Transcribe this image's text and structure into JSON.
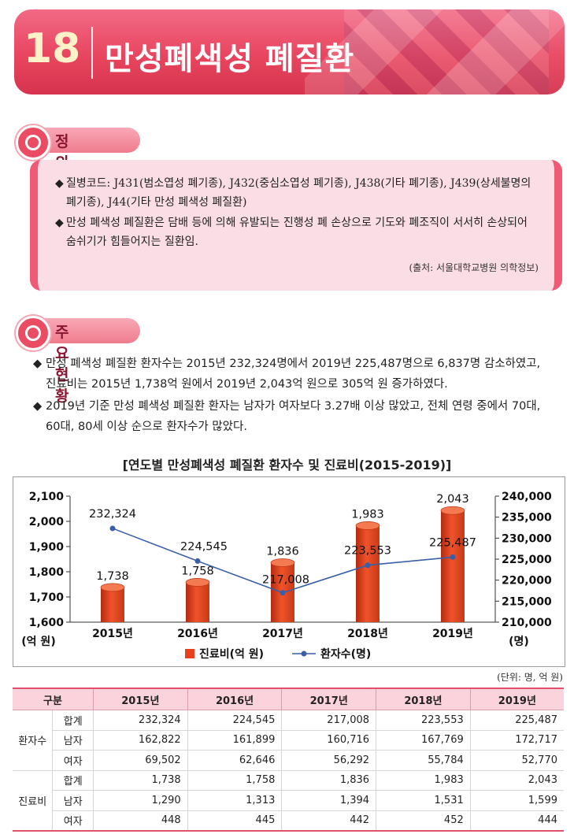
{
  "header": {
    "number": "18",
    "title": "만성폐색성 폐질환"
  },
  "definition": {
    "heading": "정  의",
    "bullets": [
      [
        "질병코드: J431(범소엽성 폐기종), J432(중심소엽성 폐기종), J438(기타 폐기종), J439(상세불명의",
        "폐기종), J44(기타 만성 폐색성 폐질환)"
      ],
      [
        "만성 폐색성 폐질환은 담배 등에 의해 유발되는 진행성 폐 손상으로 기도와 폐조직이 서서히 손상되어",
        "숨쉬기가 힘들어지는 질환임."
      ]
    ],
    "source": "(출처: 서울대학교병원 의학정보)"
  },
  "status": {
    "heading": "주요현황",
    "bullets": [
      [
        "만성 폐색성 폐질환 환자수는 2015년 232,324명에서 2019년 225,487명으로 6,837명 감소하였고,",
        "진료비는 2015년 1,738억 원에서 2019년 2,043억 원으로 305억 원 증가하였다."
      ],
      [
        "2019년 기준 만성 폐색성 폐질환 환자는 남자가 여자보다 3.27배 이상 많았고, 전체 연령 중에서 70대,",
        "60대, 80세 이상 순으로 환자수가 많았다."
      ]
    ]
  },
  "chart_data": {
    "type": "bar",
    "title": "[연도별 만성폐색성 폐질환 환자수 및 진료비(2015-2019)]",
    "categories": [
      "2015년",
      "2016년",
      "2017년",
      "2018년",
      "2019년"
    ],
    "series": [
      {
        "name": "진료비(억 원)",
        "type": "bar",
        "axis": "left",
        "values": [
          1738,
          1758,
          1836,
          1983,
          2043
        ],
        "labels": [
          "1,738",
          "1,758",
          "1,836",
          "1,983",
          "2,043"
        ],
        "color": "#e8401c"
      },
      {
        "name": "환자수(명)",
        "type": "line",
        "axis": "right",
        "values": [
          232324,
          224545,
          217008,
          223553,
          225487
        ],
        "labels": [
          "232,324",
          "224,545",
          "217,008",
          "223,553",
          "225,487"
        ],
        "color": "#3a5fa8"
      }
    ],
    "ylabel_left": "(억 원)",
    "ylabel_right": "(명)",
    "ylim_left": [
      1600,
      2100
    ],
    "ylim_right": [
      210000,
      240000
    ],
    "yticks_left": [
      "1,600",
      "1,700",
      "1,800",
      "1,900",
      "2,000",
      "2,100"
    ],
    "yticks_right": [
      "210,000",
      "215,000",
      "220,000",
      "225,000",
      "230,000",
      "235,000",
      "240,000"
    ],
    "legend": "bottom",
    "grid": false
  },
  "table": {
    "unit": "(단위: 명, 억 원)",
    "headers": [
      "구분",
      "2015년",
      "2016년",
      "2017년",
      "2018년",
      "2019년"
    ],
    "groups": [
      {
        "name": "환자수",
        "rows": [
          {
            "label": "합계",
            "values": [
              "232,324",
              "224,545",
              "217,008",
              "223,553",
              "225,487"
            ]
          },
          {
            "label": "남자",
            "values": [
              "162,822",
              "161,899",
              "160,716",
              "167,769",
              "172,717"
            ]
          },
          {
            "label": "여자",
            "values": [
              "69,502",
              "62,646",
              "56,292",
              "55,784",
              "52,770"
            ]
          }
        ]
      },
      {
        "name": "진료비",
        "rows": [
          {
            "label": "합계",
            "values": [
              "1,738",
              "1,758",
              "1,836",
              "1,983",
              "2,043"
            ]
          },
          {
            "label": "남자",
            "values": [
              "1,290",
              "1,313",
              "1,394",
              "1,531",
              "1,599"
            ]
          },
          {
            "label": "여자",
            "values": [
              "448",
              "445",
              "442",
              "452",
              "444"
            ]
          }
        ]
      }
    ]
  }
}
